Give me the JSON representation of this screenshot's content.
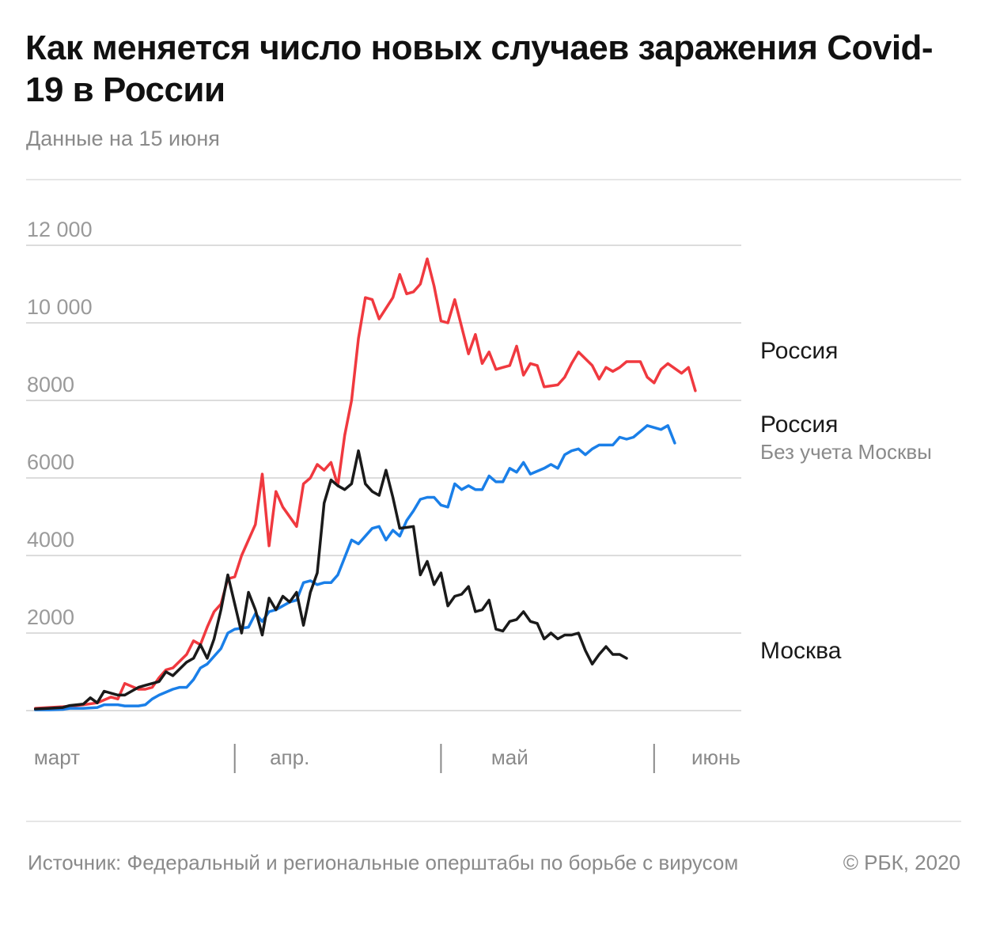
{
  "header": {
    "title": "Как меняется число новых случаев заражения Covid-19 в России",
    "subtitle": "Данные на 15 июня"
  },
  "footer": {
    "source": "Источник: Федеральный и региональные оперштабы по борьбе с вирусом",
    "copyright": "© РБК, 2020"
  },
  "colors": {
    "russia": "#f0393f",
    "russia_ex_moscow": "#1a7fe8",
    "moscow": "#1a1a1a",
    "grid": "#dcdcdc",
    "month_tick": "#8a8a8a"
  },
  "chart_data": {
    "type": "line",
    "title": "Как меняется число новых случаев заражения Covid-19 в России",
    "subtitle": "Данные на 15 июня",
    "xlabel": "",
    "ylabel": "",
    "x_start": "2020-03-01",
    "x_end": "2020-06-14",
    "ylim": [
      0,
      12000
    ],
    "y_ticks": [
      {
        "value": 2000,
        "label": "2000"
      },
      {
        "value": 4000,
        "label": "4000"
      },
      {
        "value": 6000,
        "label": "6000"
      },
      {
        "value": 8000,
        "label": "8000"
      },
      {
        "value": 10000,
        "label": "10 000"
      },
      {
        "value": 12000,
        "label": "12 000"
      }
    ],
    "month_labels": [
      {
        "label": "март",
        "date": "2020-03-01"
      },
      {
        "label": "апр.",
        "date": "2020-04-08"
      },
      {
        "label": "май",
        "date": "2020-05-10"
      },
      {
        "label": "июнь",
        "date": "2020-06-09"
      }
    ],
    "month_boundaries": [
      "2020-03-31",
      "2020-04-30",
      "2020-05-31"
    ],
    "grid": true,
    "legend": "inline labels at right end of lines",
    "series": [
      {
        "name": "Россия",
        "sublabel": "",
        "color": "#f0393f",
        "points": [
          [
            "2020-03-02",
            60
          ],
          [
            "2020-03-04",
            80
          ],
          [
            "2020-03-06",
            100
          ],
          [
            "2020-03-08",
            130
          ],
          [
            "2020-03-09",
            150
          ],
          [
            "2020-03-11",
            200
          ],
          [
            "2020-03-13",
            350
          ],
          [
            "2020-03-14",
            300
          ],
          [
            "2020-03-15",
            700
          ],
          [
            "2020-03-17",
            550
          ],
          [
            "2020-03-18",
            550
          ],
          [
            "2020-03-19",
            600
          ],
          [
            "2020-03-20",
            850
          ],
          [
            "2020-03-21",
            1050
          ],
          [
            "2020-03-22",
            1100
          ],
          [
            "2020-03-24",
            1450
          ],
          [
            "2020-03-25",
            1800
          ],
          [
            "2020-03-26",
            1700
          ],
          [
            "2020-03-27",
            2150
          ],
          [
            "2020-03-28",
            2550
          ],
          [
            "2020-03-29",
            2750
          ],
          [
            "2020-03-30",
            3400
          ],
          [
            "2020-03-31",
            3450
          ],
          [
            "2020-04-01",
            4000
          ],
          [
            "2020-04-03",
            4800
          ],
          [
            "2020-04-04",
            6100
          ],
          [
            "2020-04-05",
            4250
          ],
          [
            "2020-04-06",
            5650
          ],
          [
            "2020-04-07",
            5250
          ],
          [
            "2020-04-09",
            4750
          ],
          [
            "2020-04-10",
            5850
          ],
          [
            "2020-04-11",
            6000
          ],
          [
            "2020-04-12",
            6350
          ],
          [
            "2020-04-13",
            6200
          ],
          [
            "2020-04-14",
            6400
          ],
          [
            "2020-04-15",
            5800
          ],
          [
            "2020-04-16",
            7100
          ],
          [
            "2020-04-17",
            8000
          ],
          [
            "2020-04-18",
            9600
          ],
          [
            "2020-04-19",
            10650
          ],
          [
            "2020-04-20",
            10600
          ],
          [
            "2020-04-21",
            10100
          ],
          [
            "2020-04-23",
            10650
          ],
          [
            "2020-04-24",
            11250
          ],
          [
            "2020-04-25",
            10750
          ],
          [
            "2020-04-26",
            10800
          ],
          [
            "2020-04-27",
            11000
          ],
          [
            "2020-04-28",
            11650
          ],
          [
            "2020-04-29",
            10950
          ],
          [
            "2020-04-30",
            10050
          ],
          [
            "2020-05-01",
            10000
          ],
          [
            "2020-05-02",
            10600
          ],
          [
            "2020-05-04",
            9200
          ],
          [
            "2020-05-05",
            9700
          ],
          [
            "2020-05-06",
            8950
          ],
          [
            "2020-05-07",
            9250
          ],
          [
            "2020-05-08",
            8800
          ],
          [
            "2020-05-09",
            8850
          ],
          [
            "2020-05-10",
            8900
          ],
          [
            "2020-05-11",
            9400
          ],
          [
            "2020-05-12",
            8650
          ],
          [
            "2020-05-13",
            8950
          ],
          [
            "2020-05-14",
            8900
          ],
          [
            "2020-05-15",
            8350
          ],
          [
            "2020-05-17",
            8400
          ],
          [
            "2020-05-18",
            8600
          ],
          [
            "2020-05-19",
            8950
          ],
          [
            "2020-05-20",
            9250
          ],
          [
            "2020-05-22",
            8900
          ],
          [
            "2020-05-23",
            8550
          ],
          [
            "2020-05-24",
            8850
          ],
          [
            "2020-05-25",
            8750
          ],
          [
            "2020-05-26",
            8850
          ],
          [
            "2020-05-27",
            9000
          ],
          [
            "2020-05-29",
            9000
          ],
          [
            "2020-05-30",
            8600
          ],
          [
            "2020-05-31",
            8450
          ],
          [
            "2020-06-01",
            8800
          ],
          [
            "2020-06-02",
            8950
          ],
          [
            "2020-06-04",
            8700
          ],
          [
            "2020-06-05",
            8850
          ],
          [
            "2020-06-06",
            8250
          ]
        ]
      },
      {
        "name": "Россия",
        "sublabel": "Без учета Москвы",
        "color": "#1a7fe8",
        "points": [
          [
            "2020-03-02",
            20
          ],
          [
            "2020-03-04",
            20
          ],
          [
            "2020-03-06",
            30
          ],
          [
            "2020-03-07",
            60
          ],
          [
            "2020-03-09",
            60
          ],
          [
            "2020-03-11",
            80
          ],
          [
            "2020-03-12",
            150
          ],
          [
            "2020-03-14",
            150
          ],
          [
            "2020-03-15",
            120
          ],
          [
            "2020-03-17",
            120
          ],
          [
            "2020-03-18",
            150
          ],
          [
            "2020-03-19",
            300
          ],
          [
            "2020-03-20",
            400
          ],
          [
            "2020-03-22",
            550
          ],
          [
            "2020-03-23",
            600
          ],
          [
            "2020-03-24",
            600
          ],
          [
            "2020-03-25",
            800
          ],
          [
            "2020-03-26",
            1100
          ],
          [
            "2020-03-27",
            1200
          ],
          [
            "2020-03-28",
            1400
          ],
          [
            "2020-03-29",
            1600
          ],
          [
            "2020-03-30",
            2000
          ],
          [
            "2020-03-31",
            2100
          ],
          [
            "2020-04-02",
            2150
          ],
          [
            "2020-04-03",
            2500
          ],
          [
            "2020-04-04",
            2300
          ],
          [
            "2020-04-05",
            2550
          ],
          [
            "2020-04-06",
            2600
          ],
          [
            "2020-04-07",
            2700
          ],
          [
            "2020-04-08",
            2800
          ],
          [
            "2020-04-09",
            2850
          ],
          [
            "2020-04-10",
            3300
          ],
          [
            "2020-04-11",
            3350
          ],
          [
            "2020-04-12",
            3250
          ],
          [
            "2020-04-13",
            3300
          ],
          [
            "2020-04-14",
            3300
          ],
          [
            "2020-04-15",
            3500
          ],
          [
            "2020-04-16",
            3950
          ],
          [
            "2020-04-17",
            4400
          ],
          [
            "2020-04-18",
            4300
          ],
          [
            "2020-04-20",
            4700
          ],
          [
            "2020-04-21",
            4750
          ],
          [
            "2020-04-22",
            4400
          ],
          [
            "2020-04-23",
            4650
          ],
          [
            "2020-04-24",
            4500
          ],
          [
            "2020-04-25",
            4900
          ],
          [
            "2020-04-26",
            5150
          ],
          [
            "2020-04-27",
            5450
          ],
          [
            "2020-04-28",
            5500
          ],
          [
            "2020-04-29",
            5500
          ],
          [
            "2020-04-30",
            5300
          ],
          [
            "2020-05-01",
            5250
          ],
          [
            "2020-05-02",
            5850
          ],
          [
            "2020-05-03",
            5700
          ],
          [
            "2020-05-04",
            5800
          ],
          [
            "2020-05-05",
            5700
          ],
          [
            "2020-05-06",
            5700
          ],
          [
            "2020-05-07",
            6050
          ],
          [
            "2020-05-08",
            5900
          ],
          [
            "2020-05-09",
            5900
          ],
          [
            "2020-05-10",
            6250
          ],
          [
            "2020-05-11",
            6150
          ],
          [
            "2020-05-12",
            6400
          ],
          [
            "2020-05-13",
            6100
          ],
          [
            "2020-05-15",
            6250
          ],
          [
            "2020-05-16",
            6350
          ],
          [
            "2020-05-17",
            6250
          ],
          [
            "2020-05-18",
            6600
          ],
          [
            "2020-05-19",
            6700
          ],
          [
            "2020-05-20",
            6750
          ],
          [
            "2020-05-21",
            6600
          ],
          [
            "2020-05-22",
            6750
          ],
          [
            "2020-05-23",
            6850
          ],
          [
            "2020-05-24",
            6850
          ],
          [
            "2020-05-25",
            6850
          ],
          [
            "2020-05-26",
            7050
          ],
          [
            "2020-05-27",
            7000
          ],
          [
            "2020-05-28",
            7050
          ],
          [
            "2020-05-29",
            7200
          ],
          [
            "2020-05-30",
            7350
          ],
          [
            "2020-05-31",
            7300
          ],
          [
            "2020-06-01",
            7250
          ],
          [
            "2020-06-02",
            7350
          ],
          [
            "2020-06-03",
            6900
          ]
        ]
      },
      {
        "name": "Москва",
        "sublabel": "",
        "color": "#1a1a1a",
        "points": [
          [
            "2020-03-02",
            40
          ],
          [
            "2020-03-04",
            60
          ],
          [
            "2020-03-06",
            80
          ],
          [
            "2020-03-07",
            130
          ],
          [
            "2020-03-09",
            170
          ],
          [
            "2020-03-10",
            330
          ],
          [
            "2020-03-11",
            200
          ],
          [
            "2020-03-12",
            500
          ],
          [
            "2020-03-14",
            400
          ],
          [
            "2020-03-15",
            400
          ],
          [
            "2020-03-16",
            500
          ],
          [
            "2020-03-17",
            600
          ],
          [
            "2020-03-18",
            650
          ],
          [
            "2020-03-20",
            750
          ],
          [
            "2020-03-21",
            1000
          ],
          [
            "2020-03-22",
            900
          ],
          [
            "2020-03-24",
            1250
          ],
          [
            "2020-03-25",
            1350
          ],
          [
            "2020-03-26",
            1700
          ],
          [
            "2020-03-27",
            1350
          ],
          [
            "2020-03-28",
            1850
          ],
          [
            "2020-03-29",
            2600
          ],
          [
            "2020-03-30",
            3500
          ],
          [
            "2020-04-01",
            2000
          ],
          [
            "2020-04-02",
            3050
          ],
          [
            "2020-04-03",
            2600
          ],
          [
            "2020-04-04",
            1950
          ],
          [
            "2020-04-05",
            2900
          ],
          [
            "2020-04-06",
            2600
          ],
          [
            "2020-04-07",
            2950
          ],
          [
            "2020-04-08",
            2800
          ],
          [
            "2020-04-09",
            3050
          ],
          [
            "2020-04-10",
            2200
          ],
          [
            "2020-04-11",
            3050
          ],
          [
            "2020-04-12",
            3550
          ],
          [
            "2020-04-13",
            5350
          ],
          [
            "2020-04-14",
            5950
          ],
          [
            "2020-04-15",
            5800
          ],
          [
            "2020-04-16",
            5700
          ],
          [
            "2020-04-17",
            5850
          ],
          [
            "2020-04-18",
            6700
          ],
          [
            "2020-04-19",
            5850
          ],
          [
            "2020-04-20",
            5650
          ],
          [
            "2020-04-21",
            5550
          ],
          [
            "2020-04-22",
            6200
          ],
          [
            "2020-04-23",
            5500
          ],
          [
            "2020-04-24",
            4700
          ],
          [
            "2020-04-26",
            4750
          ],
          [
            "2020-04-27",
            3500
          ],
          [
            "2020-04-28",
            3850
          ],
          [
            "2020-04-29",
            3250
          ],
          [
            "2020-04-30",
            3550
          ],
          [
            "2020-05-01",
            2700
          ],
          [
            "2020-05-02",
            2950
          ],
          [
            "2020-05-03",
            3000
          ],
          [
            "2020-05-04",
            3200
          ],
          [
            "2020-05-05",
            2550
          ],
          [
            "2020-05-06",
            2600
          ],
          [
            "2020-05-07",
            2850
          ],
          [
            "2020-05-08",
            2100
          ],
          [
            "2020-05-09",
            2050
          ],
          [
            "2020-05-10",
            2300
          ],
          [
            "2020-05-11",
            2350
          ],
          [
            "2020-05-12",
            2550
          ],
          [
            "2020-05-13",
            2300
          ],
          [
            "2020-05-14",
            2250
          ],
          [
            "2020-05-15",
            1850
          ],
          [
            "2020-05-16",
            2000
          ],
          [
            "2020-05-17",
            1850
          ],
          [
            "2020-05-18",
            1950
          ],
          [
            "2020-05-19",
            1950
          ],
          [
            "2020-05-20",
            2000
          ],
          [
            "2020-05-21",
            1550
          ],
          [
            "2020-05-22",
            1200
          ],
          [
            "2020-05-23",
            1450
          ],
          [
            "2020-05-24",
            1650
          ],
          [
            "2020-05-25",
            1450
          ],
          [
            "2020-05-26",
            1450
          ],
          [
            "2020-05-27",
            1350
          ]
        ]
      }
    ]
  }
}
